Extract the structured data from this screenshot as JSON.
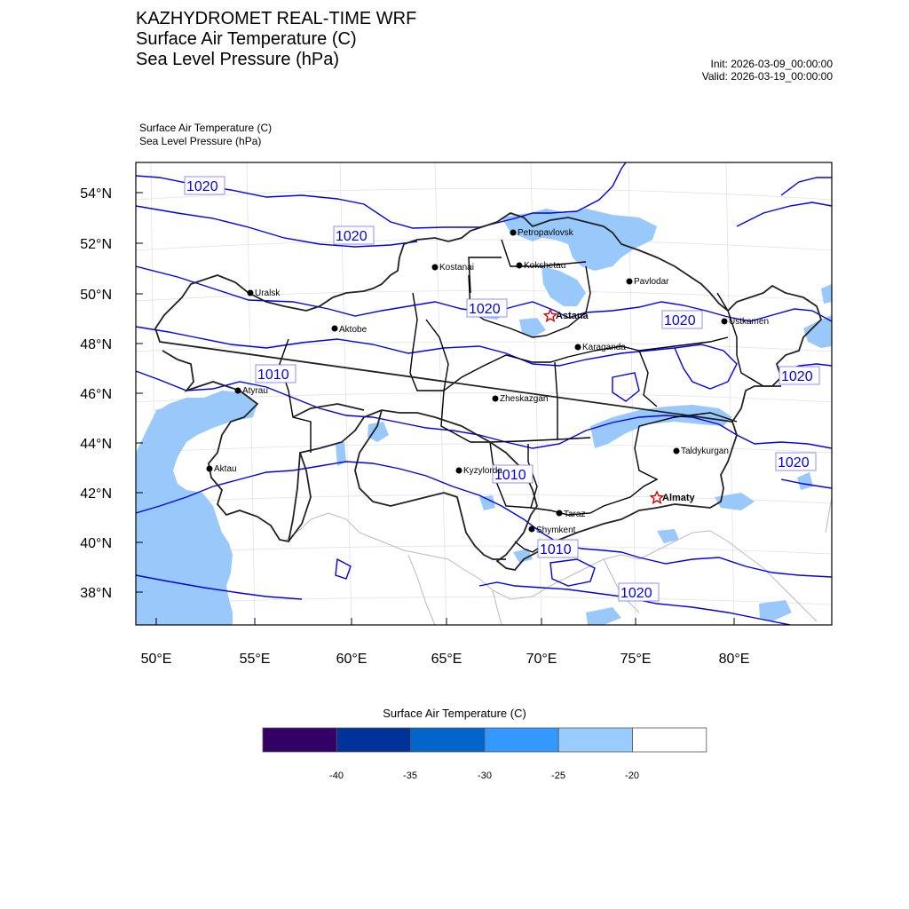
{
  "header": {
    "title_lines": [
      "KAZHYDROMET REAL-TIME WRF",
      "Surface Air Temperature  (C)",
      "Sea Level Pressure  (hPa)"
    ],
    "init": "Init: 2026-03-09_00:00:00",
    "valid": "Valid: 2026-03-19_00:00:00"
  },
  "plot": {
    "subtitle_lines": [
      "Surface Air Temperature   (C)",
      "Sea Level Pressure   (hPa)"
    ],
    "lat_ticks": [
      "54°N",
      "52°N",
      "50°N",
      "48°N",
      "46°N",
      "44°N",
      "42°N",
      "40°N",
      "38°N"
    ],
    "lon_ticks": [
      "50°E",
      "55°E",
      "60°E",
      "65°E",
      "70°E",
      "75°E",
      "80°E"
    ],
    "isobar_labels": [
      "1020",
      "1020",
      "1020",
      "1020",
      "1020",
      "1010",
      "1020",
      "1010",
      "1010",
      "1020"
    ],
    "cities": [
      {
        "name": "Petropavlovsk",
        "capital": false
      },
      {
        "name": "Kostanai",
        "capital": false
      },
      {
        "name": "Kokshetau",
        "capital": false
      },
      {
        "name": "Uralsk",
        "capital": false
      },
      {
        "name": "Pavlodar",
        "capital": false
      },
      {
        "name": "Astana",
        "capital": true
      },
      {
        "name": "Aktobe",
        "capital": false
      },
      {
        "name": "Ustkamen",
        "capital": false
      },
      {
        "name": "Karaganda",
        "capital": false
      },
      {
        "name": "Atyrau",
        "capital": false
      },
      {
        "name": "Zheskazgan",
        "capital": false
      },
      {
        "name": "Aktau",
        "capital": false
      },
      {
        "name": "Kyzylorda",
        "capital": false
      },
      {
        "name": "Taldykurgan",
        "capital": false
      },
      {
        "name": "Almaty",
        "capital": true
      },
      {
        "name": "Taraz",
        "capital": false
      },
      {
        "name": "Shymkent",
        "capital": false
      }
    ],
    "colors": {
      "isobar": "#0000ee",
      "temp_fill": "#99c9fb",
      "border": "#000000"
    }
  },
  "colorbar": {
    "title": "Surface Air Temperature (C)",
    "colors": [
      "#330066",
      "#003399",
      "#0066cc",
      "#3399ff",
      "#99ccff",
      "#ffffff"
    ],
    "labels": [
      "-40",
      "-35",
      "-30",
      "-25",
      "-20"
    ]
  }
}
